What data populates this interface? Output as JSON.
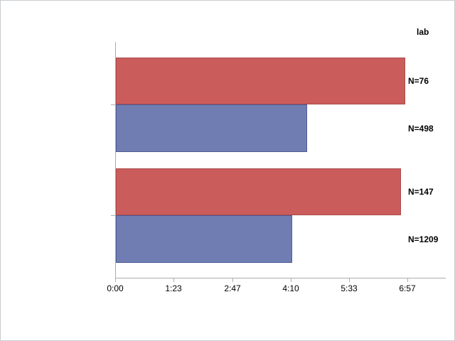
{
  "window": {
    "background": "#ffffff",
    "border_color": "#c9cdd1"
  },
  "chart_data": {
    "type": "bar",
    "orientation": "horizontal",
    "title": "",
    "legend_title": "lab",
    "x_axis": {
      "tick_labels": [
        "0:00",
        "1:23",
        "2:47",
        "4:10",
        "5:33",
        "6:57"
      ],
      "tick_values_seconds": [
        0,
        83.33,
        166.67,
        250,
        333.33,
        416.67
      ],
      "axis_max_seconds": 470,
      "grid": false
    },
    "bars": [
      {
        "label": "N=76",
        "series": "red",
        "value_seconds": 412,
        "approx_time": "6:52"
      },
      {
        "label": "N=498",
        "series": "blue",
        "value_seconds": 272,
        "approx_time": "4:32"
      },
      {
        "label": "N=147",
        "series": "red",
        "value_seconds": 406,
        "approx_time": "6:46"
      },
      {
        "label": "N=1209",
        "series": "blue",
        "value_seconds": 251,
        "approx_time": "4:11"
      }
    ],
    "series_colors": {
      "red_fill": "#ca5c5c",
      "red_border": "#ac4a47",
      "blue_fill": "#6f7db2",
      "blue_border": "#4f5d99"
    },
    "axis_color": "#a9adb0",
    "text_color": "#000000",
    "legend_position": "top-right"
  }
}
